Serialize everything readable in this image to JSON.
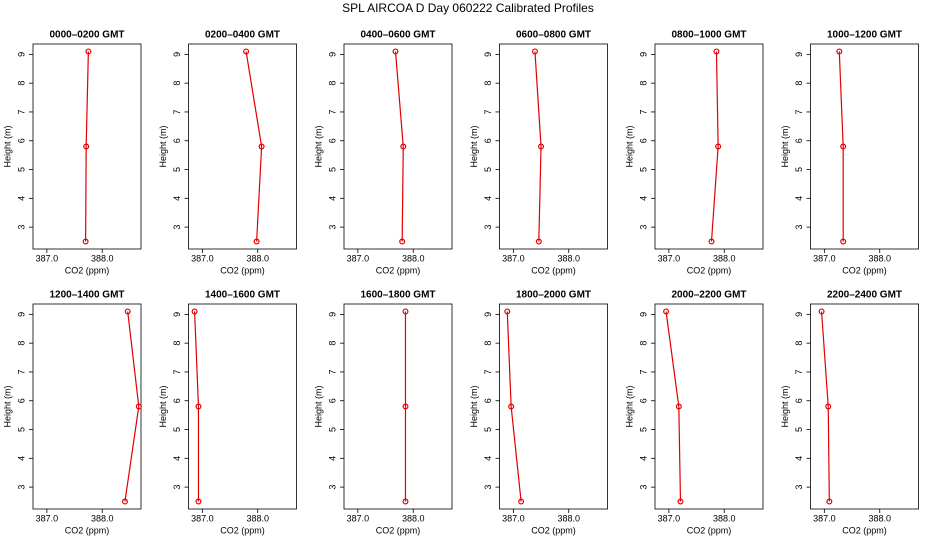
{
  "title": "SPL AIRCOA D  Day 060222  Calibrated Profiles",
  "chart_data": [
    {
      "type": "line",
      "title": "0000–0200 GMT",
      "xlabel": "CO2 (ppm)",
      "ylabel": "Height (m)",
      "y": [
        2.5,
        5.8,
        9.1
      ],
      "series": [
        {
          "color": "#e00000",
          "values": [
            387.7,
            387.71,
            387.75
          ]
        }
      ],
      "xlim": [
        386.75,
        388.7
      ],
      "xticks": [
        {
          "value": 387,
          "label": "387.0"
        },
        {
          "value": 388,
          "label": "388.0"
        }
      ],
      "ylim": [
        2.24,
        9.36
      ],
      "yticks": [
        3,
        4,
        5,
        6,
        7,
        8,
        9
      ]
    },
    {
      "type": "line",
      "title": "0200–0400 GMT",
      "xlabel": "CO2 (ppm)",
      "ylabel": "Height (m)",
      "y": [
        2.5,
        5.8,
        9.1
      ],
      "series": [
        {
          "color": "#e00000",
          "values": [
            387.98,
            388.07,
            387.79
          ]
        }
      ],
      "xlim": [
        386.75,
        388.7
      ],
      "xticks": [
        {
          "value": 387,
          "label": "387.0"
        },
        {
          "value": 388,
          "label": "388.0"
        }
      ],
      "ylim": [
        2.24,
        9.36
      ],
      "yticks": [
        3,
        4,
        5,
        6,
        7,
        8,
        9
      ]
    },
    {
      "type": "line",
      "title": "0400–0600 GMT",
      "xlabel": "CO2 (ppm)",
      "ylabel": "Height (m)",
      "y": [
        2.5,
        5.8,
        9.1
      ],
      "series": [
        {
          "color": "#e00000",
          "values": [
            387.8,
            387.82,
            387.68
          ]
        }
      ],
      "xlim": [
        386.75,
        388.7
      ],
      "xticks": [
        {
          "value": 387,
          "label": "387.0"
        },
        {
          "value": 388,
          "label": "388.0"
        }
      ],
      "ylim": [
        2.24,
        9.36
      ],
      "yticks": [
        3,
        4,
        5,
        6,
        7,
        8,
        9
      ]
    },
    {
      "type": "line",
      "title": "0600–0800 GMT",
      "xlabel": "CO2 (ppm)",
      "ylabel": "Height (m)",
      "y": [
        2.5,
        5.8,
        9.1
      ],
      "series": [
        {
          "color": "#e00000",
          "values": [
            387.46,
            387.5,
            387.39
          ]
        }
      ],
      "xlim": [
        386.75,
        388.7
      ],
      "xticks": [
        {
          "value": 387,
          "label": "387.0"
        },
        {
          "value": 388,
          "label": "388.0"
        }
      ],
      "ylim": [
        2.24,
        9.36
      ],
      "yticks": [
        3,
        4,
        5,
        6,
        7,
        8,
        9
      ]
    },
    {
      "type": "line",
      "title": "0800–1000 GMT",
      "xlabel": "CO2 (ppm)",
      "ylabel": "Height (m)",
      "y": [
        2.5,
        5.8,
        9.1
      ],
      "series": [
        {
          "color": "#e00000",
          "values": [
            387.77,
            387.89,
            387.86
          ]
        }
      ],
      "xlim": [
        386.75,
        388.7
      ],
      "xticks": [
        {
          "value": 387,
          "label": "387.0"
        },
        {
          "value": 388,
          "label": "388.0"
        }
      ],
      "ylim": [
        2.24,
        9.36
      ],
      "yticks": [
        3,
        4,
        5,
        6,
        7,
        8,
        9
      ]
    },
    {
      "type": "line",
      "title": "1000–1200 GMT",
      "xlabel": "CO2 (ppm)",
      "ylabel": "Height (m)",
      "y": [
        2.5,
        5.8,
        9.1
      ],
      "series": [
        {
          "color": "#e00000",
          "values": [
            387.34,
            387.34,
            387.27
          ]
        }
      ],
      "xlim": [
        386.75,
        388.7
      ],
      "xticks": [
        {
          "value": 387,
          "label": "387.0"
        },
        {
          "value": 388,
          "label": "388.0"
        }
      ],
      "ylim": [
        2.24,
        9.36
      ],
      "yticks": [
        3,
        4,
        5,
        6,
        7,
        8,
        9
      ]
    },
    {
      "type": "line",
      "title": "1200–1400 GMT",
      "xlabel": "CO2 (ppm)",
      "ylabel": "Height (m)",
      "y": [
        2.5,
        5.8,
        9.1
      ],
      "series": [
        {
          "color": "#e00000",
          "values": [
            388.41,
            388.66,
            388.46
          ]
        }
      ],
      "xlim": [
        386.75,
        388.7
      ],
      "xticks": [
        {
          "value": 387,
          "label": "387.0"
        },
        {
          "value": 388,
          "label": "388.0"
        }
      ],
      "ylim": [
        2.24,
        9.36
      ],
      "yticks": [
        3,
        4,
        5,
        6,
        7,
        8,
        9
      ]
    },
    {
      "type": "line",
      "title": "1400–1600 GMT",
      "xlabel": "CO2 (ppm)",
      "ylabel": "Height (m)",
      "y": [
        2.5,
        5.8,
        9.1
      ],
      "series": [
        {
          "color": "#e00000",
          "values": [
            386.93,
            386.93,
            386.86
          ]
        }
      ],
      "xlim": [
        386.75,
        388.7
      ],
      "xticks": [
        {
          "value": 387,
          "label": "387.0"
        },
        {
          "value": 388,
          "label": "388.0"
        }
      ],
      "ylim": [
        2.24,
        9.36
      ],
      "yticks": [
        3,
        4,
        5,
        6,
        7,
        8,
        9
      ]
    },
    {
      "type": "line",
      "title": "1600–1800 GMT",
      "xlabel": "CO2 (ppm)",
      "ylabel": "Height (m)",
      "y": [
        2.5,
        5.8,
        9.1
      ],
      "series": [
        {
          "color": "#e00000",
          "values": [
            387.86,
            387.86,
            387.86
          ]
        }
      ],
      "xlim": [
        386.75,
        388.7
      ],
      "xticks": [
        {
          "value": 387,
          "label": "387.0"
        },
        {
          "value": 388,
          "label": "388.0"
        }
      ],
      "ylim": [
        2.24,
        9.36
      ],
      "yticks": [
        3,
        4,
        5,
        6,
        7,
        8,
        9
      ]
    },
    {
      "type": "line",
      "title": "1800–2000 GMT",
      "xlabel": "CO2 (ppm)",
      "ylabel": "Height (m)",
      "y": [
        2.5,
        5.8,
        9.1
      ],
      "series": [
        {
          "color": "#e00000",
          "values": [
            387.14,
            386.96,
            386.89
          ]
        }
      ],
      "xlim": [
        386.75,
        388.7
      ],
      "xticks": [
        {
          "value": 387,
          "label": "387.0"
        },
        {
          "value": 388,
          "label": "388.0"
        }
      ],
      "ylim": [
        2.24,
        9.36
      ],
      "yticks": [
        3,
        4,
        5,
        6,
        7,
        8,
        9
      ]
    },
    {
      "type": "line",
      "title": "2000–2200 GMT",
      "xlabel": "CO2 (ppm)",
      "ylabel": "Height (m)",
      "y": [
        2.5,
        5.8,
        9.1
      ],
      "series": [
        {
          "color": "#e00000",
          "values": [
            387.21,
            387.18,
            386.95
          ]
        }
      ],
      "xlim": [
        386.75,
        388.7
      ],
      "xticks": [
        {
          "value": 387,
          "label": "387.0"
        },
        {
          "value": 388,
          "label": "388.0"
        }
      ],
      "ylim": [
        2.24,
        9.36
      ],
      "yticks": [
        3,
        4,
        5,
        6,
        7,
        8,
        9
      ]
    },
    {
      "type": "line",
      "title": "2200–2400 GMT",
      "xlabel": "CO2 (ppm)",
      "ylabel": "Height (m)",
      "y": [
        2.5,
        5.8,
        9.1
      ],
      "series": [
        {
          "color": "#e00000",
          "values": [
            387.09,
            387.07,
            386.95
          ]
        }
      ],
      "xlim": [
        386.75,
        388.7
      ],
      "xticks": [
        {
          "value": 387,
          "label": "387.0"
        },
        {
          "value": 388,
          "label": "388.0"
        }
      ],
      "ylim": [
        2.24,
        9.36
      ],
      "yticks": [
        3,
        4,
        5,
        6,
        7,
        8,
        9
      ]
    }
  ]
}
